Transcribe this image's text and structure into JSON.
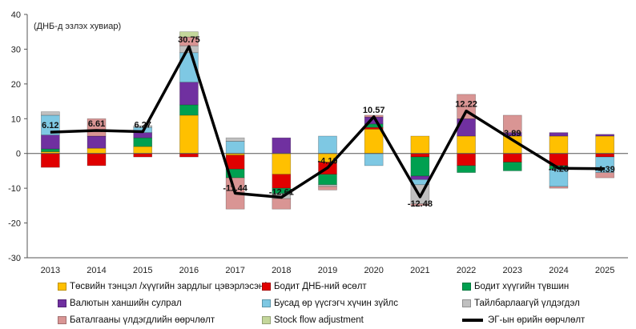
{
  "chart_data": {
    "type": "bar",
    "stacked": true,
    "unit_note": "(ДНБ-д эзлэх хувиар)",
    "ylim": [
      -30,
      40
    ],
    "yticks": [
      -30,
      -20,
      -10,
      0,
      10,
      20,
      30,
      40
    ],
    "grid": false,
    "legend_position": "bottom",
    "categories": [
      "2013",
      "2014",
      "2015",
      "2016",
      "2017",
      "2018",
      "2019",
      "2020",
      "2021",
      "2022",
      "2023",
      "2024",
      "2025"
    ],
    "series": [
      {
        "name": "Төсвийн тэнцэл /хүүгийн зардлыг цэвэрлэсэн/",
        "color": "#FFC000",
        "values": [
          0.5,
          1.5,
          2.0,
          11.0,
          -0.5,
          -6.0,
          -2.5,
          7.0,
          5.0,
          5.0,
          5.0,
          5.0,
          5.0
        ]
      },
      {
        "name": "Бодит ДНБ-ний өсөлт",
        "color": "#E00000",
        "values": [
          -4.0,
          -3.5,
          -1.0,
          -1.0,
          -4.0,
          -4.0,
          -3.5,
          0.5,
          -1.0,
          -3.5,
          -2.5,
          -3.5,
          -1.0
        ]
      },
      {
        "name": "Бодит хүүгийн түвшин",
        "color": "#00A050",
        "values": [
          0.8,
          0.0,
          2.5,
          3.0,
          -2.5,
          -1.5,
          -3.0,
          1.0,
          -5.5,
          -2.0,
          -2.5,
          -1.0,
          0.0
        ]
      },
      {
        "name": "Валютын ханшийн сулрал",
        "color": "#7030A0",
        "values": [
          4.0,
          3.5,
          1.5,
          6.5,
          0.0,
          4.5,
          0.0,
          2.0,
          -1.0,
          5.0,
          1.0,
          1.0,
          0.5
        ]
      },
      {
        "name": "Бусад өр үүсгэгч хүчин зүйлс",
        "color": "#7EC8E3",
        "values": [
          5.7,
          0.0,
          1.5,
          8.5,
          3.5,
          0.0,
          5.0,
          -3.5,
          -1.5,
          0.0,
          0.0,
          -5.0,
          -4.5
        ]
      },
      {
        "name": "Тайлбарлаагүй үлдэгдэл",
        "color": "#C0C0C0",
        "values": [
          1.0,
          0.0,
          0.5,
          2.0,
          1.0,
          -1.5,
          -0.5,
          0.0,
          -5.5,
          0.0,
          0.0,
          0.0,
          0.0
        ]
      },
      {
        "name": "Баталгааны үлдэгдлийн өөрчлөлт",
        "color": "#D99594",
        "values": [
          0.0,
          5.0,
          0.0,
          2.5,
          -9.0,
          -3.0,
          -1.0,
          0.5,
          -0.5,
          7.0,
          5.0,
          -0.5,
          -1.5
        ]
      },
      {
        "name": "Stock flow adjustment",
        "color": "#C4D79B",
        "values": [
          0.0,
          0.0,
          0.0,
          1.5,
          0.0,
          0.0,
          0.0,
          0.0,
          0.0,
          0.0,
          0.0,
          0.0,
          0.0
        ]
      }
    ],
    "line": {
      "name": "ЭГ-ын өрийн өөрчлөлт",
      "color": "#000000",
      "values": [
        6.12,
        6.61,
        6.27,
        30.75,
        -11.44,
        -12.61,
        -4.1,
        10.57,
        -12.48,
        12.22,
        3.89,
        -4.28,
        -4.39
      ],
      "labels": [
        "6.12",
        "6.61",
        "6.27",
        "30.75",
        "-11.44",
        "-12.61",
        "-4.10",
        "10.57",
        "-12.48",
        "12.22",
        "3.89",
        "-4.28",
        "-4.39"
      ]
    }
  }
}
